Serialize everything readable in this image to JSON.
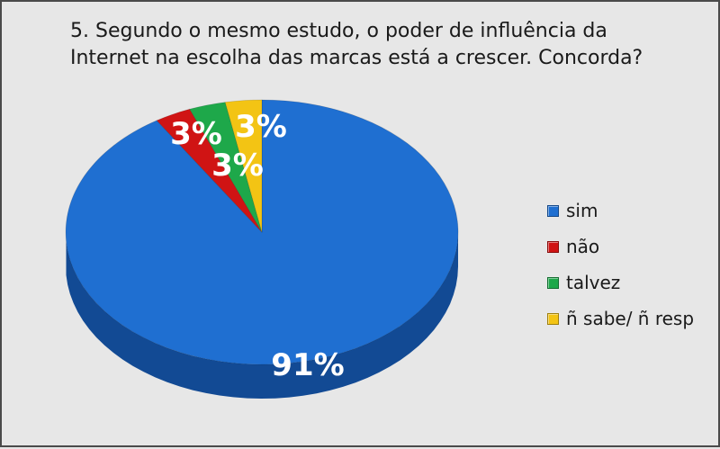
{
  "title": {
    "line1": "5. Segundo o mesmo estudo, o poder de influência da",
    "line2": "Internet na escolha das marcas está a crescer. Concorda?"
  },
  "chart_data": {
    "type": "pie",
    "title": "5. Segundo o mesmo estudo, o poder de influência da Internet na escolha das marcas está a crescer. Concorda?",
    "categories": [
      "sim",
      "não",
      "talvez",
      "ñ sabe/ ñ resp"
    ],
    "values": [
      91,
      3,
      3,
      3
    ],
    "data_labels": [
      "91%",
      "3%",
      "3%",
      "3%"
    ],
    "colors": [
      "#1f6fd1",
      "#d01414",
      "#1ea84a",
      "#f3c414"
    ],
    "side_colors": [
      "#124a94",
      "#8e0c0c",
      "#137336",
      "#b58f08"
    ],
    "legend_position": "right",
    "style": "3d"
  },
  "legend": [
    {
      "label": "sim",
      "color": "#1f6fd1"
    },
    {
      "label": "não",
      "color": "#d01414"
    },
    {
      "label": "talvez",
      "color": "#1ea84a"
    },
    {
      "label": "ñ sabe/ ñ resp",
      "color": "#f3c414"
    }
  ]
}
